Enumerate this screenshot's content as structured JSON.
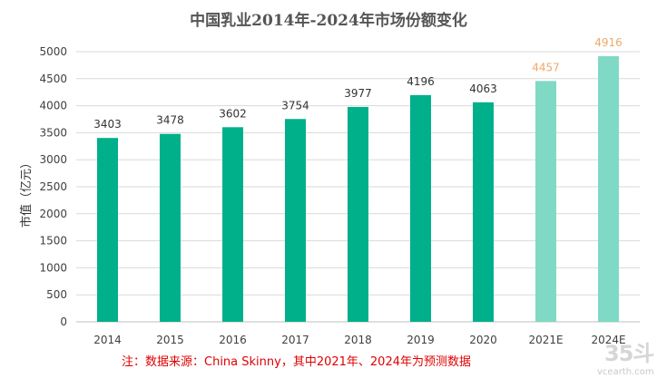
{
  "chart_data": {
    "type": "bar",
    "title": "中国乳业2014年-2024年市场份额变化",
    "ylabel": "市值（亿元）",
    "xlabel": "",
    "categories": [
      "2014",
      "2015",
      "2016",
      "2017",
      "2018",
      "2019",
      "2020",
      "2021E",
      "2024E"
    ],
    "values": [
      3403,
      3478,
      3602,
      3754,
      3977,
      4196,
      4063,
      4457,
      4916
    ],
    "estimated": [
      false,
      false,
      false,
      false,
      false,
      false,
      false,
      true,
      true
    ],
    "ylim": [
      0,
      5000
    ],
    "yticks": [
      0,
      500,
      1000,
      1500,
      2000,
      2500,
      3000,
      3500,
      4000,
      4500,
      5000
    ],
    "grid": true,
    "legend": "none",
    "colors": {
      "actual_bar": "#00b08b",
      "estimate_bar": "#7fd9c4",
      "actual_label": "#333333",
      "estimate_label": "#f0a868"
    }
  },
  "note": "注：数据来源：China Skinny，其中2021年、2024年为预测数据",
  "watermark": {
    "logo": "35斗",
    "site": "vcearth.com"
  }
}
